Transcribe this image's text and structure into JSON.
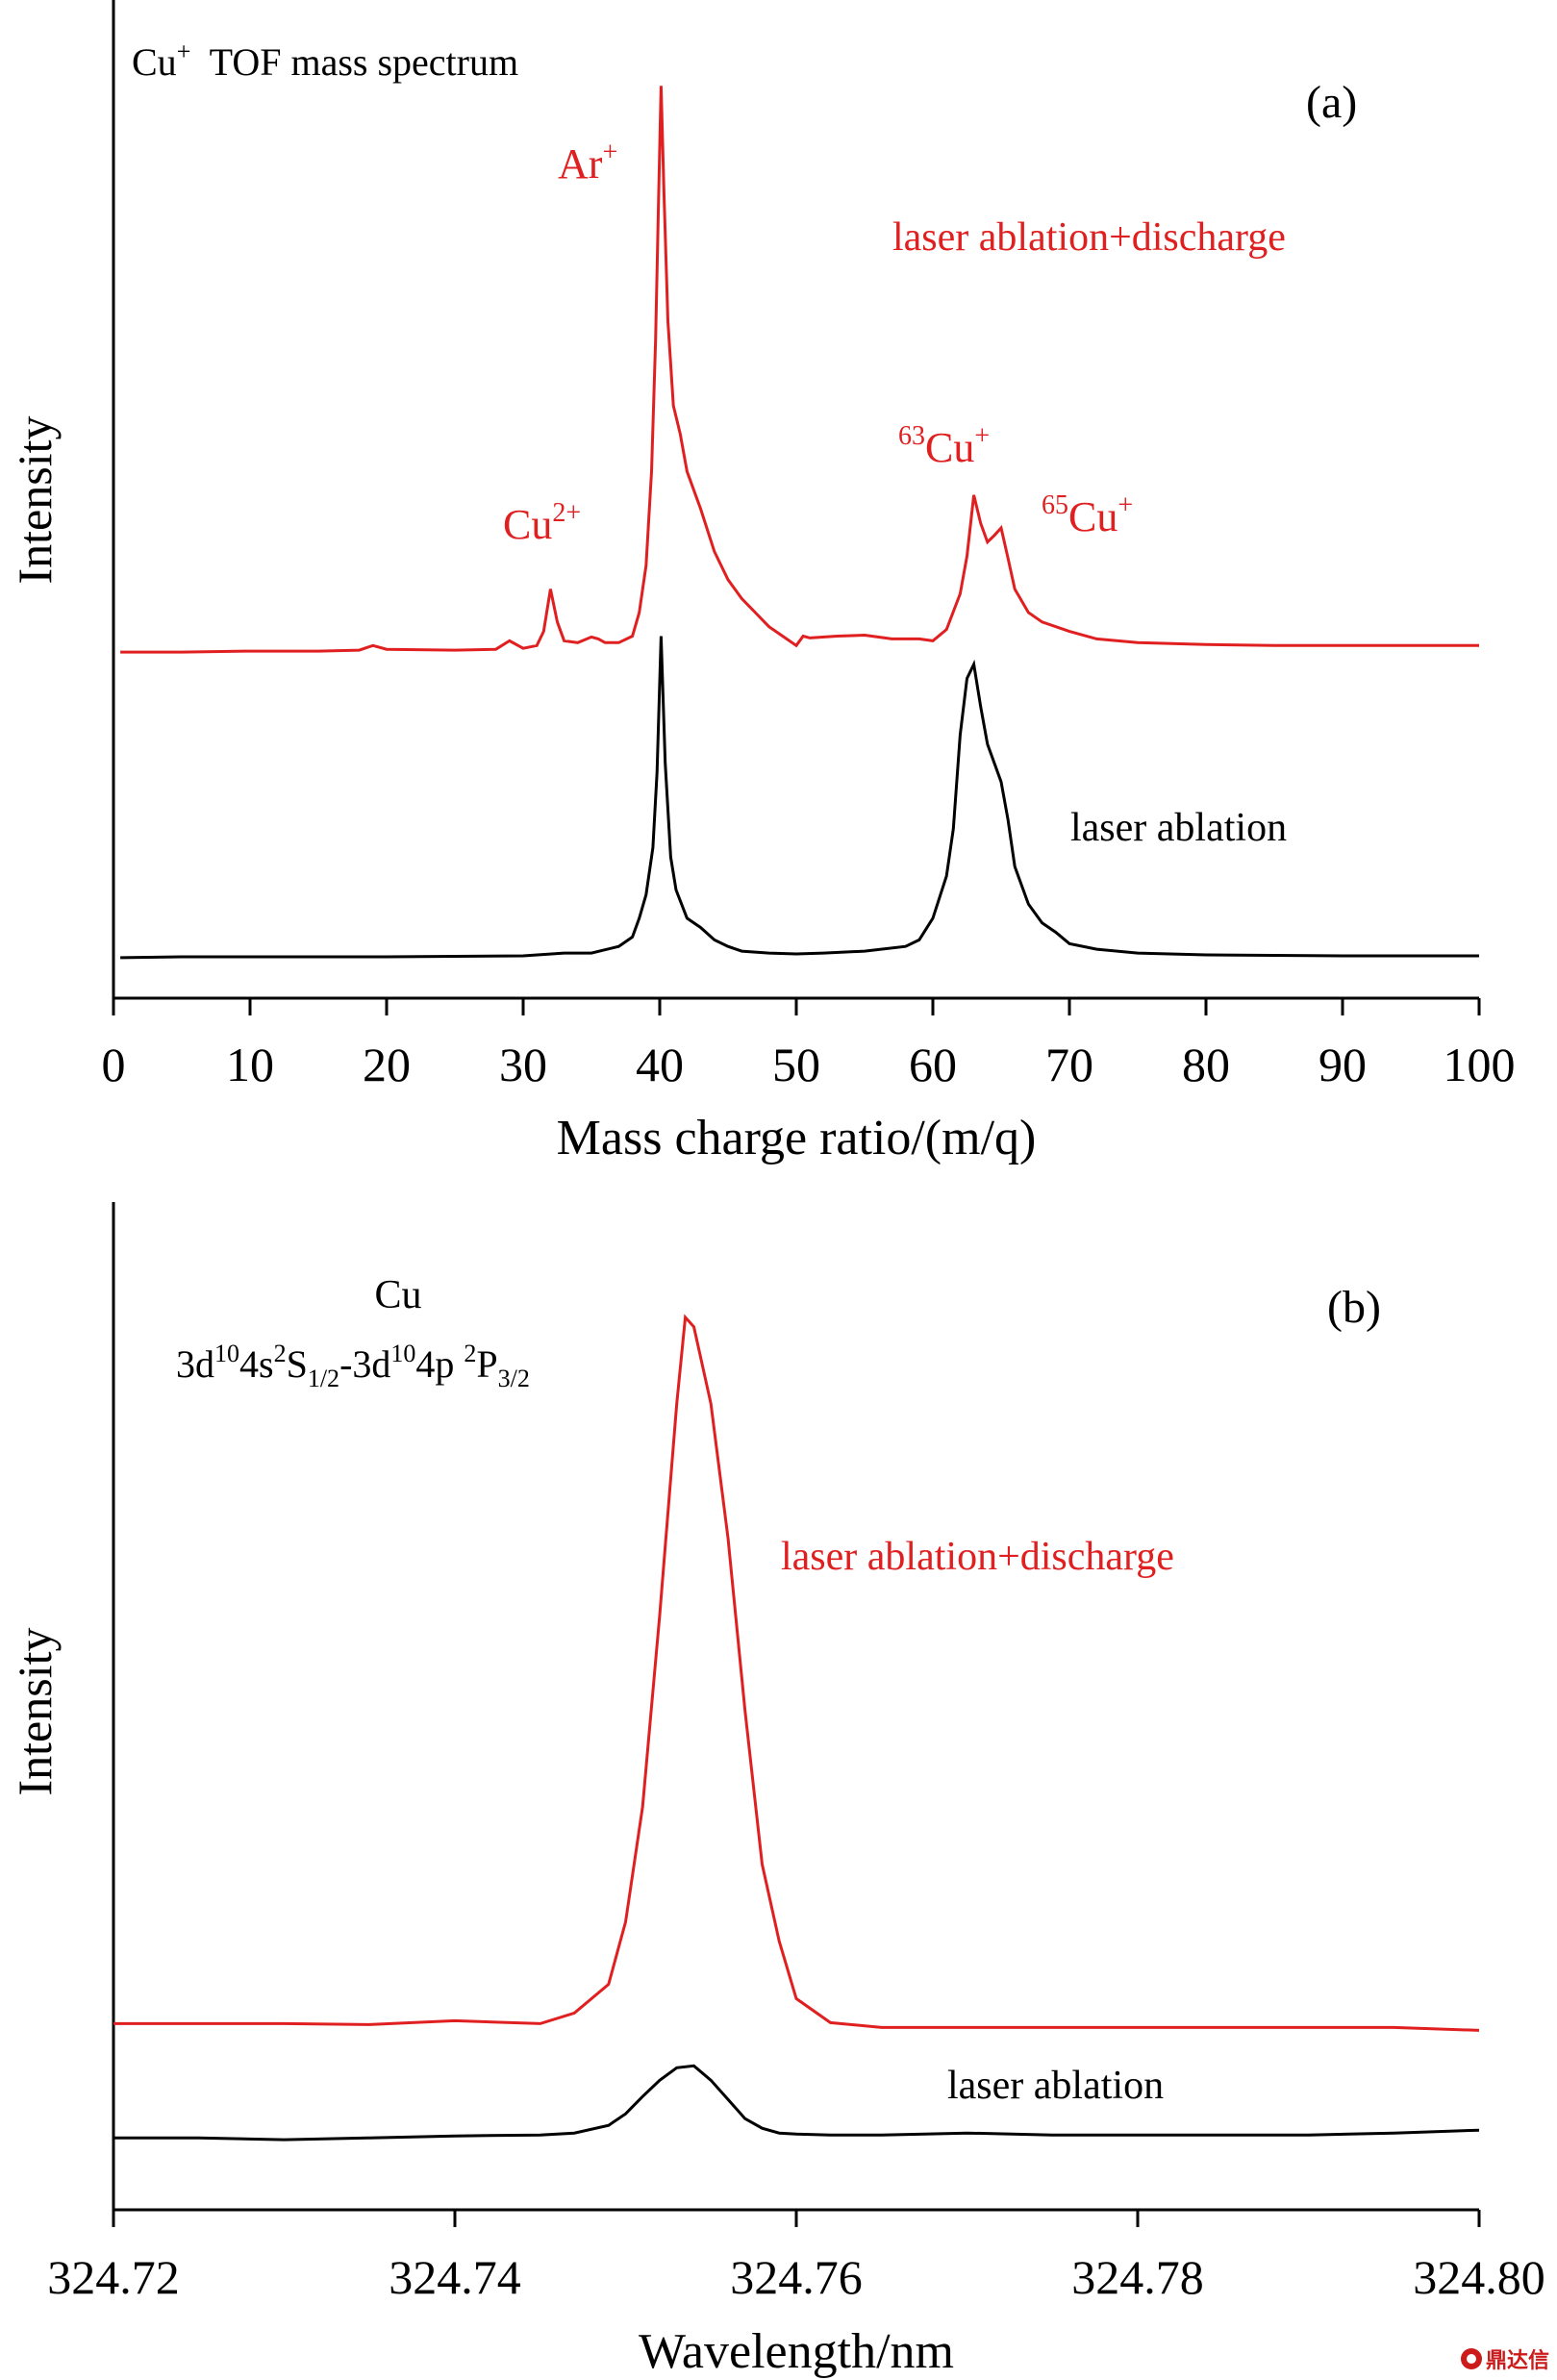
{
  "chart_data": [
    {
      "panel": "(a)",
      "type": "line",
      "title": "Cu+ TOF mass spectrum",
      "title_parts": {
        "base": "Cu",
        "sup": "+",
        "rest": "  TOF mass spectrum"
      },
      "xlabel": "Mass charge ratio/(m/q)",
      "ylabel": "Intensity",
      "xlim": [
        0,
        100
      ],
      "ylim": [
        0,
        1
      ],
      "xticks": [
        0,
        10,
        20,
        30,
        40,
        50,
        60,
        70,
        80,
        90,
        100
      ],
      "xtick_labels": [
        "0",
        "10",
        "20",
        "30",
        "40",
        "50",
        "60",
        "70",
        "80",
        "90",
        "100"
      ],
      "y_tick_labels_shown": false,
      "grid": false,
      "series": [
        {
          "name": "laser ablation+discharge",
          "color": "#e02020",
          "x": [
            0.5,
            5,
            10,
            15,
            18,
            19,
            20,
            25,
            28,
            29,
            30,
            31,
            31.5,
            32,
            32.5,
            33,
            34,
            35,
            35.5,
            36,
            37,
            38,
            38.5,
            39,
            39.4,
            39.7,
            39.9,
            40.1,
            40.3,
            40.6,
            41,
            41.5,
            42,
            43,
            44,
            45,
            46,
            47,
            48,
            49,
            50,
            50.5,
            51,
            53,
            55,
            57,
            59,
            60,
            61,
            62,
            62.5,
            63,
            63.5,
            64,
            64.5,
            65,
            65.5,
            66,
            67,
            68,
            70,
            72,
            75,
            80,
            85,
            90,
            95,
            100
          ],
          "values": [
            0.368,
            0.368,
            0.369,
            0.369,
            0.37,
            0.375,
            0.371,
            0.37,
            0.371,
            0.38,
            0.372,
            0.375,
            0.39,
            0.435,
            0.4,
            0.38,
            0.378,
            0.384,
            0.382,
            0.378,
            0.378,
            0.385,
            0.41,
            0.46,
            0.56,
            0.7,
            0.84,
            0.97,
            0.86,
            0.72,
            0.63,
            0.6,
            0.56,
            0.52,
            0.475,
            0.445,
            0.425,
            0.41,
            0.395,
            0.385,
            0.375,
            0.385,
            0.383,
            0.385,
            0.386,
            0.382,
            0.382,
            0.38,
            0.392,
            0.43,
            0.47,
            0.535,
            0.505,
            0.485,
            0.492,
            0.5,
            0.468,
            0.435,
            0.41,
            0.4,
            0.39,
            0.382,
            0.378,
            0.376,
            0.375,
            0.375,
            0.375,
            0.375
          ]
        },
        {
          "name": "laser ablation",
          "color": "#000000",
          "x": [
            0.5,
            5,
            10,
            20,
            30,
            33,
            35,
            37,
            38,
            38.5,
            39,
            39.5,
            39.8,
            40.1,
            40.4,
            40.8,
            41.2,
            42,
            43,
            44,
            45,
            46,
            48,
            50,
            52,
            55,
            58,
            59,
            60,
            61,
            61.5,
            62,
            62.5,
            63,
            63.5,
            64,
            64.5,
            65,
            65.5,
            66,
            67,
            68,
            69,
            70,
            72,
            75,
            80,
            90,
            100
          ],
          "values": [
            0.043,
            0.044,
            0.044,
            0.044,
            0.045,
            0.048,
            0.048,
            0.055,
            0.065,
            0.085,
            0.11,
            0.16,
            0.24,
            0.385,
            0.25,
            0.15,
            0.115,
            0.085,
            0.075,
            0.062,
            0.055,
            0.05,
            0.048,
            0.047,
            0.048,
            0.05,
            0.055,
            0.062,
            0.085,
            0.13,
            0.18,
            0.28,
            0.34,
            0.355,
            0.31,
            0.27,
            0.25,
            0.23,
            0.19,
            0.14,
            0.1,
            0.08,
            0.07,
            0.058,
            0.052,
            0.048,
            0.046,
            0.045,
            0.045
          ]
        }
      ],
      "annotations": {
        "panel_label": "(a)",
        "ar_plus": {
          "base": "Ar",
          "sup": "+"
        },
        "cu2_plus": {
          "base": "Cu",
          "sup": "2+"
        },
        "cu63_plus": {
          "pre": "63",
          "base": "Cu",
          "sup": "+"
        },
        "cu65_plus": {
          "pre": "65",
          "base": "Cu",
          "sup": "+"
        },
        "red_series_label": "laser ablation+discharge",
        "black_series_label": "laser ablation"
      }
    },
    {
      "panel": "(b)",
      "type": "line",
      "xlabel": "Wavelength/nm",
      "ylabel": "Intensity",
      "xlim": [
        324.72,
        324.8
      ],
      "ylim": [
        0,
        1
      ],
      "xticks": [
        324.72,
        324.74,
        324.76,
        324.78,
        324.8
      ],
      "xtick_labels": [
        "324.72",
        "324.74",
        "324.76",
        "324.78",
        "324.80"
      ],
      "y_tick_labels_shown": false,
      "grid": false,
      "series": [
        {
          "name": "laser ablation+discharge",
          "color": "#e02020",
          "x": [
            324.72,
            324.725,
            324.73,
            324.735,
            324.74,
            324.745,
            324.747,
            324.749,
            324.75,
            324.751,
            324.752,
            324.753,
            324.7535,
            324.754,
            324.755,
            324.756,
            324.757,
            324.758,
            324.759,
            324.76,
            324.762,
            324.765,
            324.77,
            324.775,
            324.78,
            324.785,
            324.79,
            324.795,
            324.8
          ],
          "values": [
            0.194,
            0.194,
            0.194,
            0.193,
            0.197,
            0.194,
            0.205,
            0.235,
            0.3,
            0.42,
            0.62,
            0.84,
            0.93,
            0.92,
            0.84,
            0.7,
            0.52,
            0.36,
            0.28,
            0.22,
            0.195,
            0.19,
            0.19,
            0.19,
            0.19,
            0.19,
            0.19,
            0.19,
            0.187
          ]
        },
        {
          "name": "laser ablation",
          "color": "#000000",
          "x": [
            324.72,
            324.725,
            324.73,
            324.735,
            324.74,
            324.745,
            324.747,
            324.749,
            324.75,
            324.751,
            324.752,
            324.753,
            324.754,
            324.755,
            324.756,
            324.757,
            324.758,
            324.759,
            324.76,
            324.762,
            324.765,
            324.77,
            324.775,
            324.78,
            324.785,
            324.79,
            324.795,
            324.8
          ],
          "values": [
            0.075,
            0.075,
            0.073,
            0.075,
            0.077,
            0.078,
            0.08,
            0.088,
            0.1,
            0.118,
            0.135,
            0.148,
            0.15,
            0.135,
            0.115,
            0.095,
            0.085,
            0.08,
            0.079,
            0.078,
            0.078,
            0.08,
            0.078,
            0.078,
            0.078,
            0.078,
            0.08,
            0.083
          ]
        }
      ],
      "annotations": {
        "panel_label": "(b)",
        "element": "Cu",
        "transition": {
          "a1": "3d",
          "s1": "10",
          "a2": "4s",
          "s2": "2",
          "a3": "S",
          "b3": "1/2",
          "a4": "-3d",
          "s4": "10",
          "a5": "4p ",
          "s5": "2",
          "a6": "P",
          "b6": "3/2"
        },
        "red_series_label": "laser ablation+discharge",
        "black_series_label": "laser ablation"
      }
    }
  ],
  "watermark": {
    "text": "鼎达信"
  }
}
